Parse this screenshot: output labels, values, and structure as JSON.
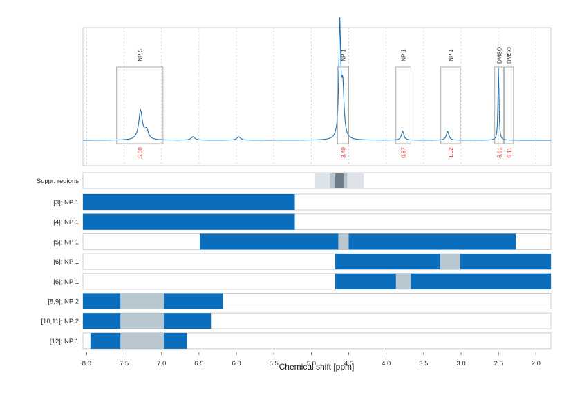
{
  "chart_data": {
    "type": "line",
    "xlabel": "Chemical shift [ppm]",
    "x_reversed": true,
    "xlim": [
      8.05,
      1.8
    ],
    "x_ticks": [
      "8.0",
      "7.5",
      "7.0",
      "6.5",
      "6.0",
      "5.5",
      "5.0",
      "4.5",
      "4.0",
      "3.5",
      "3.0",
      "2.5",
      "2.0"
    ],
    "grid": true,
    "colors": {
      "spectrum": "#1f6fb0",
      "bar": "#0a6ebd",
      "gap": "#b9c7d1",
      "integral_label": "#e0302a",
      "frame": "#cccccc",
      "box": "#999999",
      "suppr_light": "#dde3e9",
      "suppr_mid": "#b7c3cd",
      "suppr_dark": "#6c7b87"
    },
    "spectrum": {
      "baseline": 0,
      "peaks": [
        {
          "center": 7.28,
          "height": 0.26,
          "width": 0.03
        },
        {
          "center": 7.2,
          "height": 0.08,
          "width": 0.03
        },
        {
          "center": 6.58,
          "height": 0.03,
          "width": 0.03
        },
        {
          "center": 5.97,
          "height": 0.03,
          "width": 0.03
        },
        {
          "center": 4.62,
          "height": 1.0,
          "width": 0.015
        },
        {
          "center": 4.58,
          "height": 0.45,
          "width": 0.02
        },
        {
          "center": 3.78,
          "height": 0.08,
          "width": 0.02
        },
        {
          "center": 3.18,
          "height": 0.08,
          "width": 0.02
        },
        {
          "center": 2.5,
          "height": 0.66,
          "width": 0.008
        }
      ],
      "annotations": [
        {
          "label": "NP 5",
          "range": [
            7.6,
            6.98
          ],
          "integral": "5.00"
        },
        {
          "label": "NP 1",
          "range": [
            4.65,
            4.5
          ],
          "integral": "3.40"
        },
        {
          "label": "NP 1",
          "range": [
            3.87,
            3.67
          ],
          "integral": "0.87"
        },
        {
          "label": "NP 1",
          "range": [
            3.27,
            3.01
          ],
          "integral": "1.02"
        },
        {
          "label": "DMSO",
          "range": [
            2.55,
            2.43
          ],
          "integral": "5.61"
        },
        {
          "label": "DMSO",
          "range": [
            2.42,
            2.3
          ],
          "integral": "0.11"
        }
      ]
    },
    "suppression": {
      "label": "Suppr. regions",
      "regions": [
        {
          "range": [
            4.95,
            4.3
          ],
          "level": "light"
        },
        {
          "range": [
            4.75,
            4.52
          ],
          "level": "mid"
        },
        {
          "range": [
            4.68,
            4.57
          ],
          "level": "dark"
        }
      ]
    },
    "rows": [
      {
        "label": "[3]; NP 1",
        "range": [
          8.05,
          5.22
        ],
        "gaps": []
      },
      {
        "label": "[4]; NP 1",
        "range": [
          8.05,
          5.22
        ],
        "gaps": []
      },
      {
        "label": "[5]; NP 1",
        "range": [
          6.49,
          2.27
        ],
        "gaps": [
          [
            4.64,
            4.5
          ]
        ]
      },
      {
        "label": "[6]; NP 1",
        "range": [
          4.68,
          1.8
        ],
        "gaps": [
          [
            3.28,
            3.01
          ]
        ]
      },
      {
        "label": "[6]; NP 1",
        "range": [
          4.68,
          1.8
        ],
        "gaps": [
          [
            3.87,
            3.67
          ]
        ]
      },
      {
        "label": "[8,9]; NP 2",
        "range": [
          8.05,
          6.18
        ],
        "gaps": [
          [
            7.55,
            6.97
          ]
        ]
      },
      {
        "label": "[10,11]; NP 2",
        "range": [
          8.05,
          6.34
        ],
        "gaps": [
          [
            7.55,
            6.97
          ]
        ]
      },
      {
        "label": "[12]; NP 1",
        "range": [
          7.95,
          6.66
        ],
        "gaps": [
          [
            7.55,
            6.97
          ]
        ]
      }
    ]
  }
}
